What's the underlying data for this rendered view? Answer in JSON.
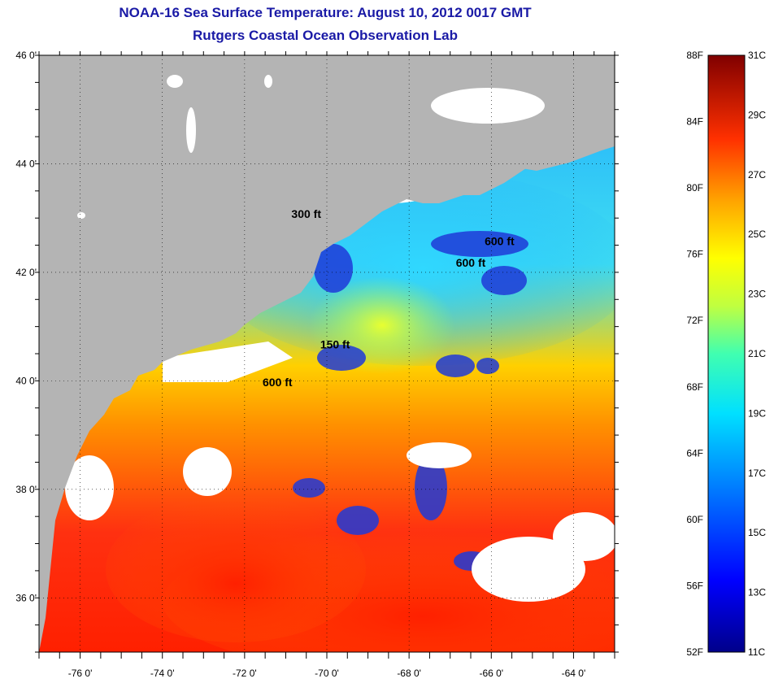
{
  "header": {
    "title": "NOAA-16 Sea Surface Temperature:  August 10, 2012 0017 GMT",
    "subtitle": "Rutgers Coastal Ocean Observation Lab"
  },
  "map": {
    "lat_range": [
      35,
      46
    ],
    "lon_range": [
      -77,
      -63
    ],
    "lat_labels": [
      {
        "lat": 46,
        "text": "46 0'"
      },
      {
        "lat": 44,
        "text": "44 0'"
      },
      {
        "lat": 42,
        "text": "42 0'"
      },
      {
        "lat": 40,
        "text": "40 0'"
      },
      {
        "lat": 38,
        "text": "38 0'"
      },
      {
        "lat": 36,
        "text": "36 0'"
      }
    ],
    "lon_labels": [
      {
        "lon": -76,
        "text": "-76 0'"
      },
      {
        "lon": -74,
        "text": "-74 0'"
      },
      {
        "lon": -72,
        "text": "-72 0'"
      },
      {
        "lon": -70,
        "text": "-70 0'"
      },
      {
        "lon": -68,
        "text": "-68 0'"
      },
      {
        "lon": -66,
        "text": "-66 0'"
      },
      {
        "lon": -64,
        "text": "-64 0'"
      }
    ],
    "contour_labels": [
      {
        "text": "600 ft",
        "lon": -65.8,
        "lat": 42.5
      },
      {
        "text": "600 ft",
        "lon": -66.5,
        "lat": 42.1
      },
      {
        "text": "300 ft",
        "lon": -70.5,
        "lat": 43.0
      },
      {
        "text": "150 ft",
        "lon": -69.8,
        "lat": 40.6
      },
      {
        "text": "600 ft",
        "lon": -71.2,
        "lat": 39.9
      }
    ],
    "colors": {
      "land": "#b4b4b4",
      "cloud": "#ffffff",
      "frame": "#000000"
    }
  },
  "colorbar": {
    "left_labels": [
      "88F",
      "84F",
      "80F",
      "76F",
      "72F",
      "68F",
      "64F",
      "60F",
      "56F",
      "52F"
    ],
    "right_labels": [
      "31C",
      "29C",
      "27C",
      "25C",
      "23C",
      "21C",
      "19C",
      "17C",
      "15C",
      "13C",
      "11C"
    ],
    "range_f": [
      52,
      88
    ],
    "range_c": [
      11,
      31
    ]
  }
}
